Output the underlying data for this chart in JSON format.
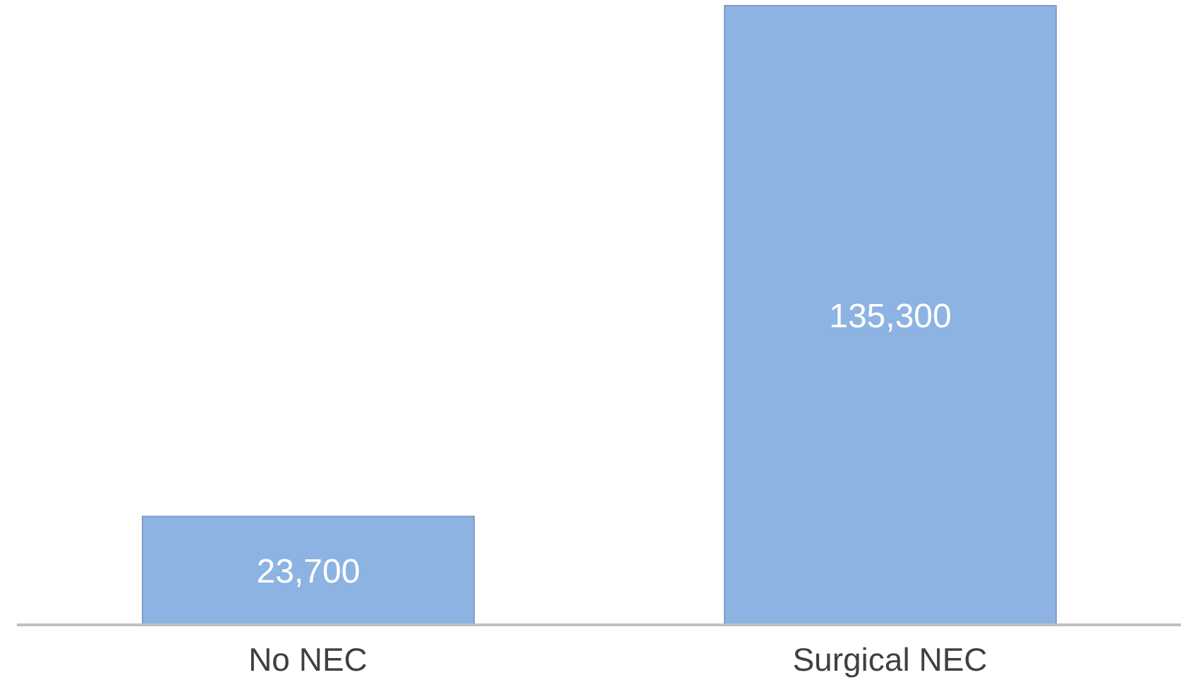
{
  "chart_data": {
    "type": "bar",
    "categories": [
      "No NEC",
      "Surgical NEC"
    ],
    "values": [
      23700,
      135300
    ],
    "value_labels": [
      "23,700",
      "135,300"
    ],
    "color": "#8db3e2"
  }
}
